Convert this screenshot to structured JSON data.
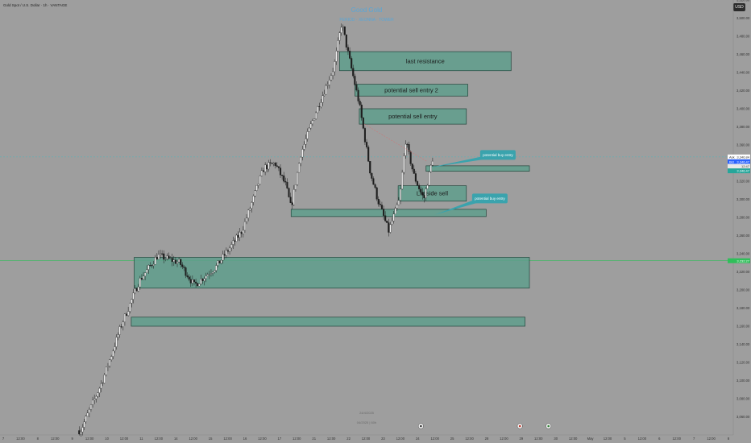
{
  "header": {
    "symbol": "Gold Spot / U.S. Dollar · 1h · VANTAGE",
    "watermark_title": "Good Gold",
    "watermark_sub": "PERIOD · XEONNA · TOWER",
    "currency": "USD"
  },
  "footer": {
    "date_line": "24/4/2025",
    "sub_line": "04/2025 | 60h"
  },
  "colors": {
    "background": "#9e9e9e",
    "zone_fill": "#5f9e8c",
    "zone_stroke": "#22463c",
    "callout": "#3aa3ad",
    "green_line": "#2fbf5a",
    "candle_up": "#f2f2f2",
    "candle_down": "#1e1e1e"
  },
  "chart_data": {
    "type": "candlestick",
    "ylim": [
      3040,
      3520
    ],
    "y_ticks": [
      3520,
      3500,
      3480,
      3460,
      3440,
      3420,
      3400,
      3380,
      3360,
      3340,
      3320,
      3300,
      3280,
      3260,
      3240,
      3220,
      3200,
      3180,
      3160,
      3140,
      3120,
      3100,
      3080,
      3060
    ],
    "x_labels": [
      "7",
      "12:00",
      "8",
      "12:00",
      "9",
      "12:00",
      "10",
      "12:00",
      "11",
      "12:00",
      "14",
      "12:00",
      "15",
      "12:00",
      "16",
      "12:00",
      "17",
      "12:00",
      "21",
      "12:00",
      "22",
      "12:00",
      "23",
      "12:00",
      "24",
      "12:00",
      "25",
      "12:00",
      "28",
      "12:00",
      "29",
      "12:00",
      "30",
      "12:00",
      "May",
      "12:00",
      "5",
      "12:00",
      "6",
      "12:00",
      "7",
      "12:00",
      "8"
    ],
    "price_tags": [
      {
        "label": "Ask",
        "value": "3,346.84",
        "price": 3346.84,
        "color": "#ffffff",
        "text_color": "#333"
      },
      {
        "label": "Bid",
        "value": "3,346.47",
        "price": 3341.5,
        "color": "#2962ff",
        "text_color": "#fff"
      },
      {
        "label": "",
        "value": "12:47",
        "price": 3336.5,
        "color": "#e8e8e8",
        "text_color": "#333"
      },
      {
        "label": "",
        "value": "3,346.47",
        "price": 3331.5,
        "color": "#26a69a",
        "text_color": "#fff"
      },
      {
        "label": "",
        "value": "3,232.27",
        "price": 3232.27,
        "color": "#2fbf5a",
        "text_color": "#fff"
      }
    ],
    "zones": [
      {
        "label": "last resistance",
        "x0": 0.463,
        "x1": 0.697,
        "y_top": 3463,
        "y_bot": 3442
      },
      {
        "label": "potential sell entry 2",
        "x0": 0.484,
        "x1": 0.638,
        "y_top": 3427,
        "y_bot": 3414
      },
      {
        "label": "potential sell entry",
        "x0": 0.49,
        "x1": 0.636,
        "y_top": 3400,
        "y_bot": 3383
      },
      {
        "label": "",
        "x0": 0.581,
        "x1": 0.722,
        "y_top": 3337,
        "y_bot": 3331
      },
      {
        "label": "Liq side sell",
        "x0": 0.543,
        "x1": 0.636,
        "y_top": 3315,
        "y_bot": 3298
      },
      {
        "label": "",
        "x0": 0.397,
        "x1": 0.663,
        "y_top": 3289,
        "y_bot": 3281
      },
      {
        "label": "",
        "x0": 0.183,
        "x1": 0.722,
        "y_top": 3236,
        "y_bot": 3202
      },
      {
        "label": "",
        "x0": 0.179,
        "x1": 0.716,
        "y_top": 3170,
        "y_bot": 3160
      }
    ],
    "callouts": [
      {
        "label": "potential buy entry",
        "x": 0.679,
        "price": 3349,
        "tail_x": 0.586,
        "tail_price": 3335
      },
      {
        "label": "potential buy entry",
        "x": 0.668,
        "price": 3301,
        "tail_x": 0.593,
        "tail_price": 3283
      }
    ],
    "hlines": [
      {
        "price": 3232.27,
        "color": "#2fbf5a"
      },
      {
        "price": 3346.84,
        "color": "#59b3b5",
        "dashed": true
      }
    ],
    "anchors": [
      {
        "t": 0.0,
        "p": 3040
      },
      {
        "t": 0.11,
        "p": 3045
      },
      {
        "t": 0.14,
        "p": 3100
      },
      {
        "t": 0.165,
        "p": 3160
      },
      {
        "t": 0.19,
        "p": 3210
      },
      {
        "t": 0.215,
        "p": 3238
      },
      {
        "t": 0.245,
        "p": 3230
      },
      {
        "t": 0.265,
        "p": 3205
      },
      {
        "t": 0.295,
        "p": 3226
      },
      {
        "t": 0.33,
        "p": 3265
      },
      {
        "t": 0.36,
        "p": 3335
      },
      {
        "t": 0.375,
        "p": 3340
      },
      {
        "t": 0.39,
        "p": 3315
      },
      {
        "t": 0.397,
        "p": 3290
      },
      {
        "t": 0.41,
        "p": 3350
      },
      {
        "t": 0.43,
        "p": 3395
      },
      {
        "t": 0.455,
        "p": 3445
      },
      {
        "t": 0.466,
        "p": 3495
      },
      {
        "t": 0.475,
        "p": 3460
      },
      {
        "t": 0.49,
        "p": 3405
      },
      {
        "t": 0.505,
        "p": 3330
      },
      {
        "t": 0.515,
        "p": 3300
      },
      {
        "t": 0.53,
        "p": 3265
      },
      {
        "t": 0.545,
        "p": 3300
      },
      {
        "t": 0.553,
        "p": 3365
      },
      {
        "t": 0.565,
        "p": 3325
      },
      {
        "t": 0.578,
        "p": 3300
      },
      {
        "t": 0.59,
        "p": 3345
      }
    ]
  }
}
